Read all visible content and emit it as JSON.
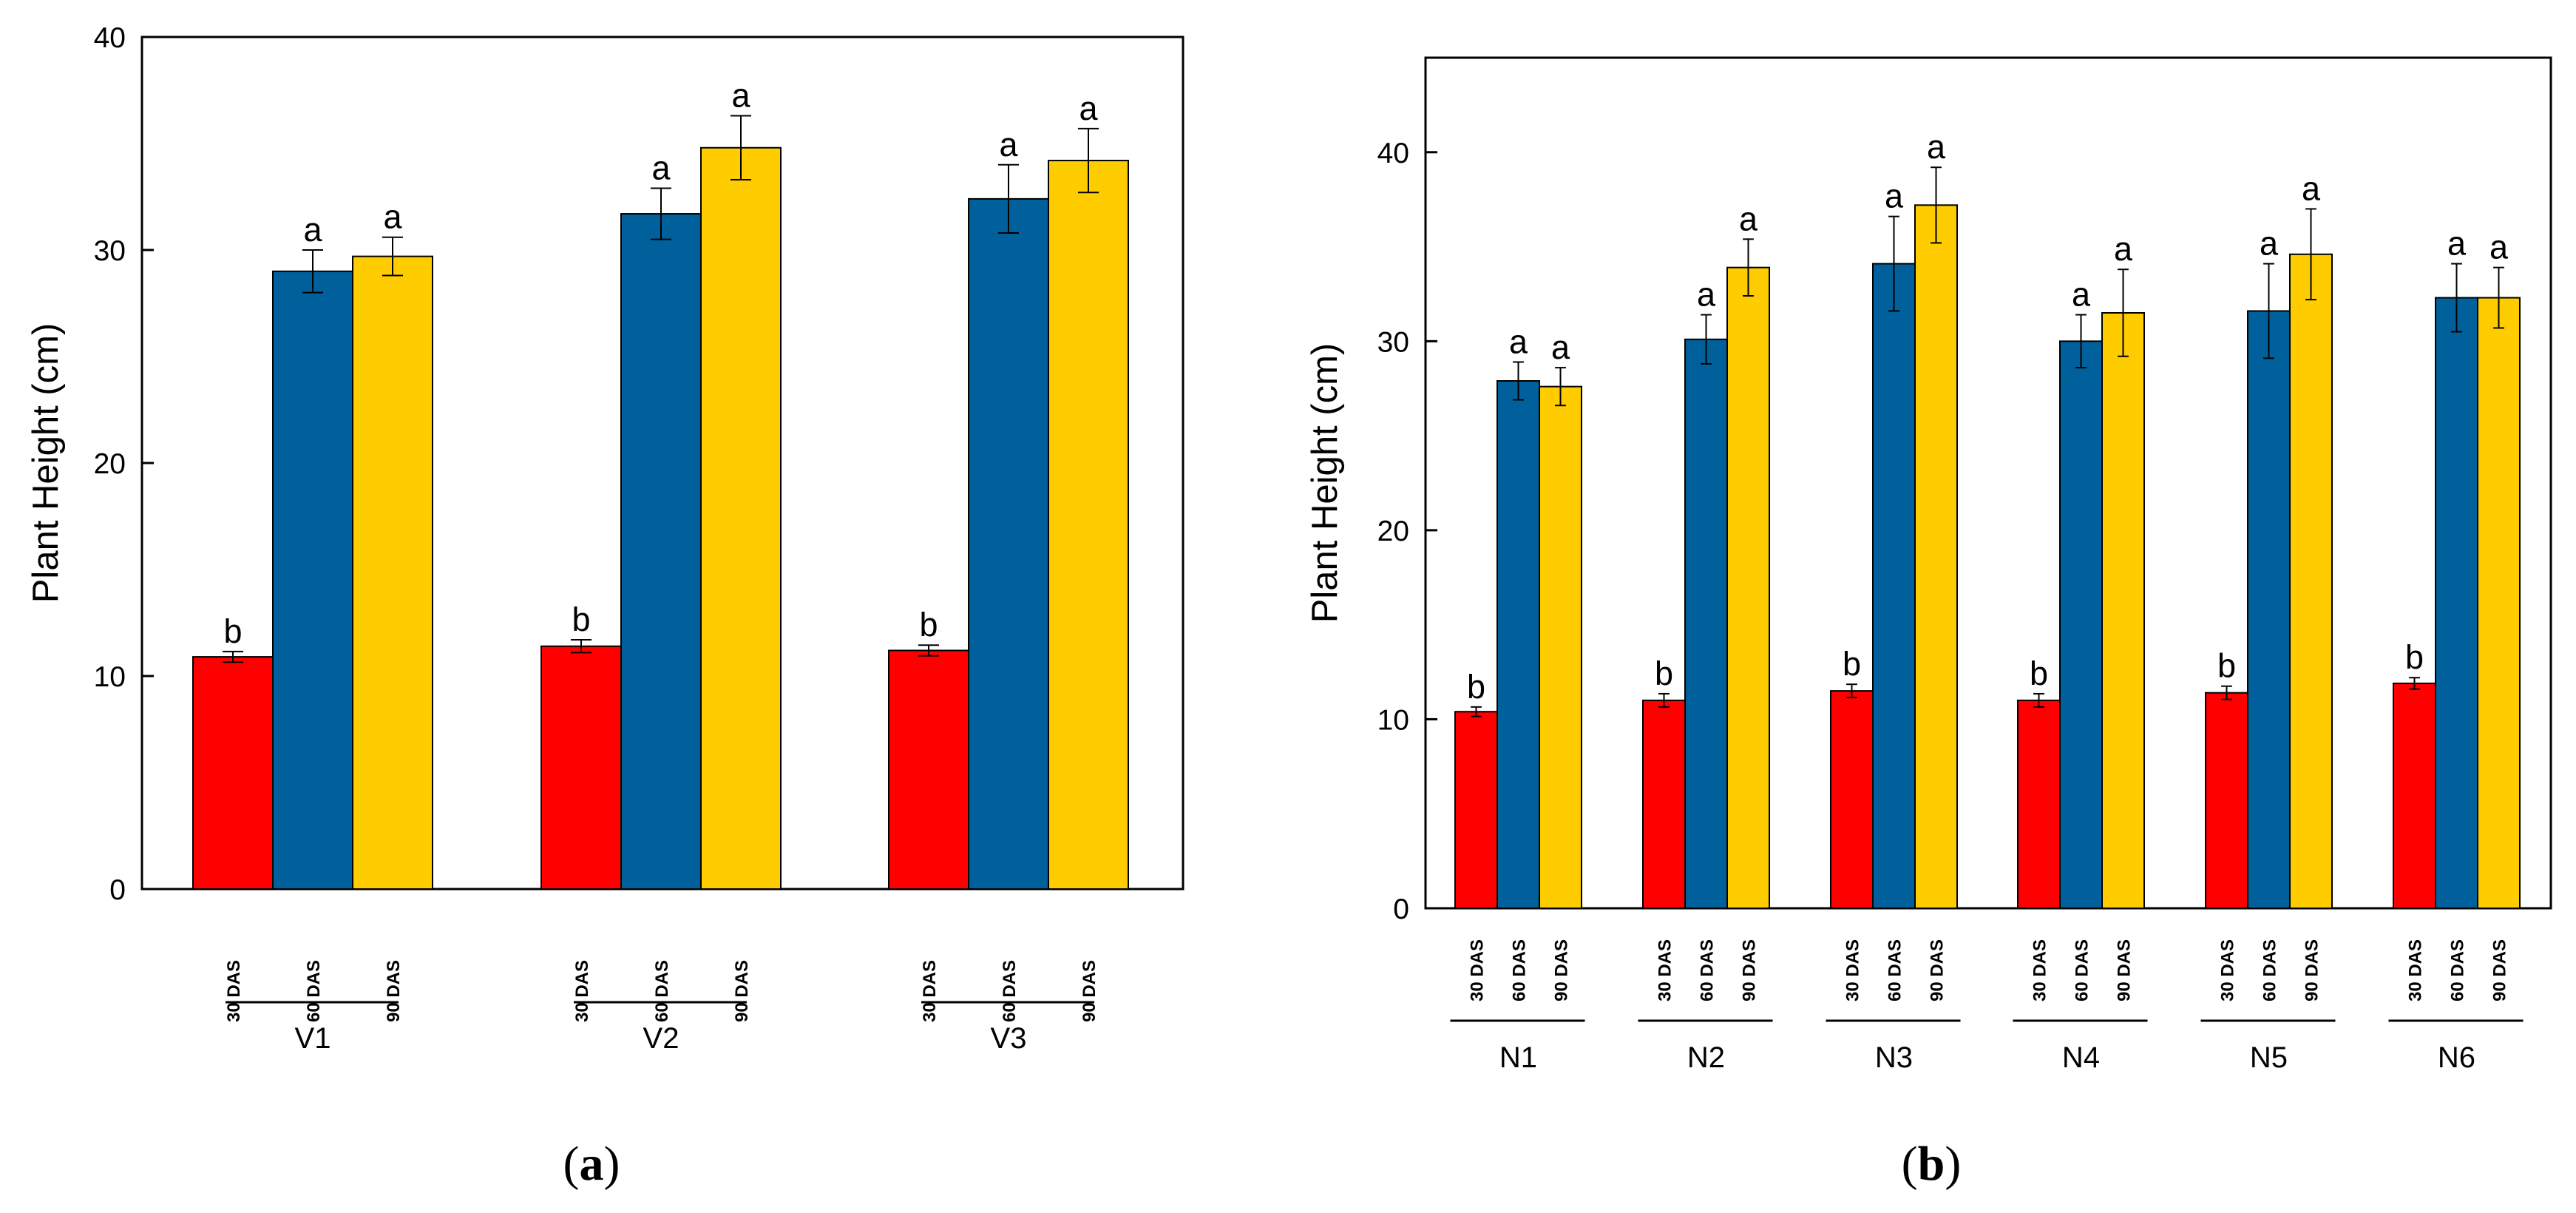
{
  "colors": {
    "30 DAS": "#fe0000",
    "60 DAS": "#00609c",
    "90 DAS": "#ffcc00"
  },
  "chart_data": [
    {
      "type": "bar",
      "panel": "a",
      "panel_label": {
        "open": "(",
        "letter": "a",
        "close": ")"
      },
      "title": "",
      "xlabel": "",
      "ylabel": "Plant Height (cm)",
      "ylim": [
        0,
        40
      ],
      "yticks": [
        0,
        10,
        20,
        30,
        40
      ],
      "groups": [
        "V1",
        "V2",
        "V3"
      ],
      "bar_labels": [
        "30 DAS",
        "60 DAS",
        "90 DAS"
      ],
      "series": [
        {
          "name": "30 DAS",
          "values": [
            10.9,
            11.4,
            11.2
          ],
          "errors": [
            0.25,
            0.3,
            0.25
          ],
          "letters": [
            "b",
            "b",
            "b"
          ]
        },
        {
          "name": "60 DAS",
          "values": [
            29.0,
            31.7,
            32.4
          ],
          "errors": [
            1.0,
            1.2,
            1.6
          ],
          "letters": [
            "a",
            "a",
            "a"
          ]
        },
        {
          "name": "90 DAS",
          "values": [
            29.7,
            34.8,
            34.2
          ],
          "errors": [
            0.9,
            1.5,
            1.5
          ],
          "letters": [
            "a",
            "a",
            "a"
          ]
        }
      ]
    },
    {
      "type": "bar",
      "panel": "b",
      "panel_label": {
        "open": "(",
        "letter": "b",
        "close": ")"
      },
      "title": "",
      "xlabel": "",
      "ylabel": "Plant Height (cm)",
      "ylim": [
        0,
        45
      ],
      "yticks": [
        0,
        10,
        20,
        30,
        40
      ],
      "groups": [
        "N1",
        "N2",
        "N3",
        "N4",
        "N5",
        "N6"
      ],
      "bar_labels": [
        "30 DAS",
        "60 DAS",
        "90 DAS"
      ],
      "series": [
        {
          "name": "30 DAS",
          "values": [
            10.4,
            11.0,
            11.5,
            11.0,
            11.4,
            11.9
          ],
          "errors": [
            0.25,
            0.35,
            0.35,
            0.35,
            0.35,
            0.3
          ],
          "letters": [
            "b",
            "b",
            "b",
            "b",
            "b",
            "b"
          ]
        },
        {
          "name": "60 DAS",
          "values": [
            27.9,
            30.1,
            34.1,
            30.0,
            31.6,
            32.3
          ],
          "errors": [
            1.0,
            1.3,
            2.5,
            1.4,
            2.5,
            1.8
          ],
          "letters": [
            "a",
            "a",
            "a",
            "a",
            "a",
            "a"
          ]
        },
        {
          "name": "90 DAS",
          "values": [
            27.6,
            33.9,
            37.2,
            31.5,
            34.6,
            32.3
          ],
          "errors": [
            1.0,
            1.5,
            2.0,
            2.3,
            2.4,
            1.6
          ],
          "letters": [
            "a",
            "a",
            "a",
            "a",
            "a",
            "a"
          ]
        }
      ]
    }
  ]
}
